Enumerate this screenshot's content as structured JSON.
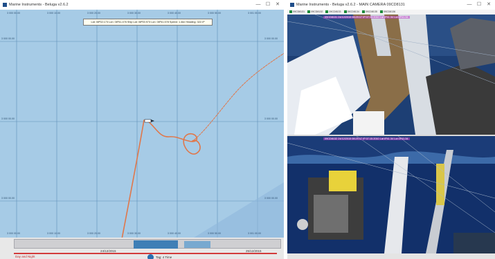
{
  "map_window": {
    "title": "Marine Instruments - Beluga v2.6.2",
    "controls": {
      "minimize": "—",
      "maximize": "☐",
      "close": "✕"
    },
    "info_box": "Lat: 08º02.173 Lon: 06º41.476  Ship Lat: 08º00.973 Lon: 06º41.578  Speed: 1.4kn  Heading: 322.0º",
    "lon_ticks": [
      "3 000 00.00",
      "3 000 10.00",
      "3 000 20.00",
      "3 000 30.00",
      "3 000 40.00",
      "3 000 50.00",
      "3 001 00.00"
    ],
    "lat_ticks": [
      "3 000 00.00",
      "3 000 00.00",
      "3 000 00.00"
    ],
    "timeline": {
      "date_left": "24/12/2015",
      "date_right": "25/12/2015",
      "label": "Day and Night",
      "status": "Tag: 4 Time"
    }
  },
  "camera_window": {
    "title": "Marine Instruments - Beluga v2.6.2 - MAIN CAMERA 09CD8131",
    "controls": {
      "minimize": "—",
      "maximize": "☐",
      "close": "✕"
    },
    "cameras": [
      "09CD8131",
      "09CD8132",
      "09CD8133",
      "09CD8134",
      "09CD8135",
      "09CD8136"
    ],
    "top_overlay": "09CD8131 24/12/2015 08:29:17 0º 07.15.2010 Lat 6º41.34 Lon 6º41.34",
    "bottom_overlay": "09CD8132 24/12/2015 08:29:17 0º 07.15.2010 Lat 6º41.34 Lon 6º41.34"
  },
  "colors": {
    "map_bg": "#a6cbe6",
    "track": "#e0774a",
    "selection": "#3f7fb6"
  }
}
